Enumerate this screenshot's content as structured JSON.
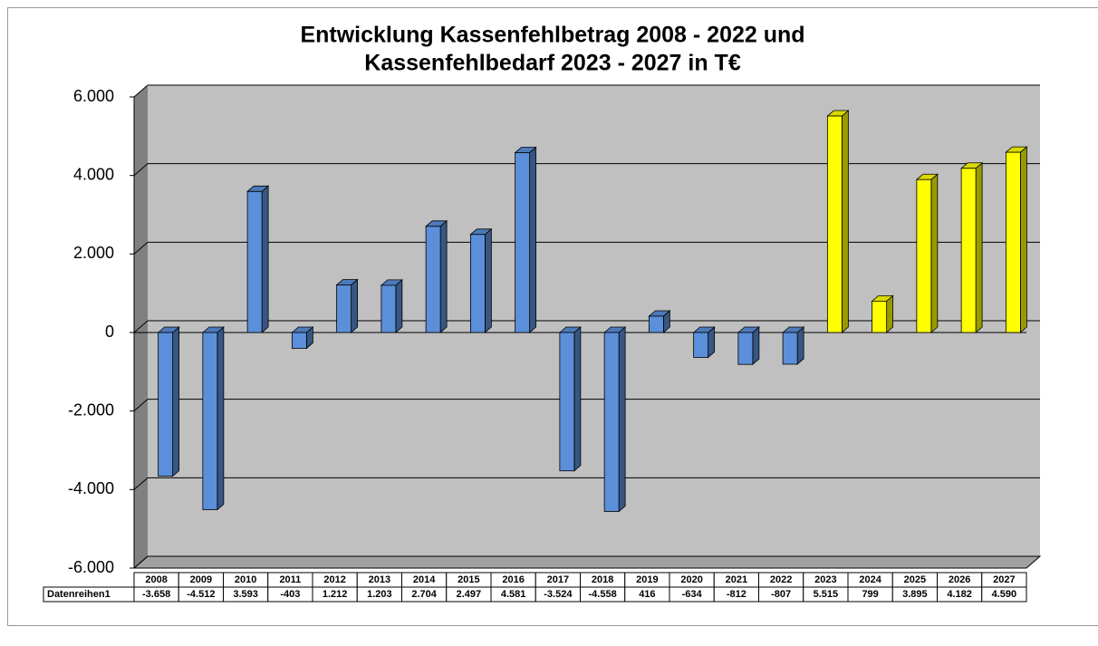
{
  "chart_data": {
    "type": "bar3d",
    "title": [
      "Entwicklung Kassenfehlbetrag 2008 - 2022 und",
      "Kassenfehlbedarf 2023 - 2027 in T€"
    ],
    "categories": [
      "2008",
      "2009",
      "2010",
      "2011",
      "2012",
      "2013",
      "2014",
      "2015",
      "2016",
      "2017",
      "2018",
      "2019",
      "2020",
      "2021",
      "2022",
      "2023",
      "2024",
      "2025",
      "2026",
      "2027"
    ],
    "series": [
      {
        "name": "Datenreihen1",
        "values": [
          -3658,
          -4512,
          3593,
          -403,
          1212,
          1203,
          2704,
          2497,
          4581,
          -3524,
          -4558,
          416,
          -634,
          -812,
          -807,
          5515,
          799,
          3895,
          4182,
          4590
        ],
        "value_labels": [
          "-3.658",
          "-4.512",
          "3.593",
          "-403",
          "1.212",
          "1.203",
          "2.704",
          "2.497",
          "4.581",
          "-3.524",
          "-4.558",
          "416",
          "-634",
          "-812",
          "-807",
          "5.515",
          "799",
          "3.895",
          "4.182",
          "4.590"
        ],
        "colors": [
          "#5b8fd9",
          "#5b8fd9",
          "#5b8fd9",
          "#5b8fd9",
          "#5b8fd9",
          "#5b8fd9",
          "#5b8fd9",
          "#5b8fd9",
          "#5b8fd9",
          "#5b8fd9",
          "#5b8fd9",
          "#5b8fd9",
          "#5b8fd9",
          "#5b8fd9",
          "#5b8fd9",
          "#ffff00",
          "#ffff00",
          "#ffff00",
          "#ffff00",
          "#ffff00"
        ]
      }
    ],
    "ylim": [
      -6000,
      6000
    ],
    "yticks": [
      {
        "value": -6000,
        "label": "-6.000"
      },
      {
        "value": -4000,
        "label": "-4.000"
      },
      {
        "value": -2000,
        "label": "-2.000"
      },
      0,
      {
        "value": 2000,
        "label": "2.000"
      },
      {
        "value": 4000,
        "label": "4.000"
      },
      {
        "value": 6000,
        "label": "6.000"
      }
    ],
    "grid": true
  }
}
